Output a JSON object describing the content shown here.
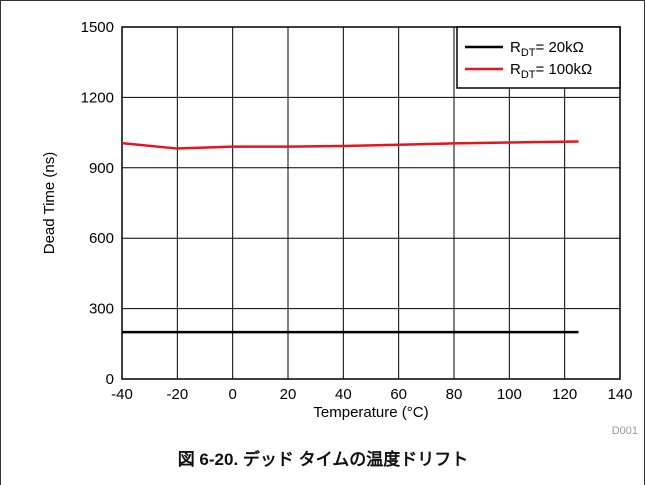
{
  "caption": "図 6-20. デッド タイムの温度ドリフト",
  "figure_id": "D001",
  "chart_data": {
    "type": "line",
    "xlabel": "Temperature (°C)",
    "ylabel": "Dead Time (ns)",
    "xlim": [
      -40,
      140
    ],
    "ylim": [
      0,
      1500
    ],
    "xticks": [
      -40,
      -20,
      0,
      20,
      40,
      60,
      80,
      100,
      120,
      140
    ],
    "yticks": [
      0,
      300,
      600,
      900,
      1200,
      1500
    ],
    "grid": true,
    "legend_position": "top-right",
    "series": [
      {
        "name_main": "R",
        "name_sub": "DT",
        "name_rest": "= 20kΩ",
        "color": "#000000",
        "x": [
          -40,
          -20,
          0,
          20,
          40,
          60,
          80,
          100,
          125
        ],
        "y": [
          200,
          200,
          200,
          200,
          200,
          200,
          200,
          200,
          200
        ]
      },
      {
        "name_main": "R",
        "name_sub": "DT",
        "name_rest": "= 100kΩ",
        "color": "#e8141b",
        "x": [
          -40,
          -20,
          0,
          20,
          40,
          60,
          80,
          100,
          125
        ],
        "y": [
          1005,
          982,
          990,
          990,
          993,
          998,
          1004,
          1008,
          1012
        ]
      }
    ]
  }
}
